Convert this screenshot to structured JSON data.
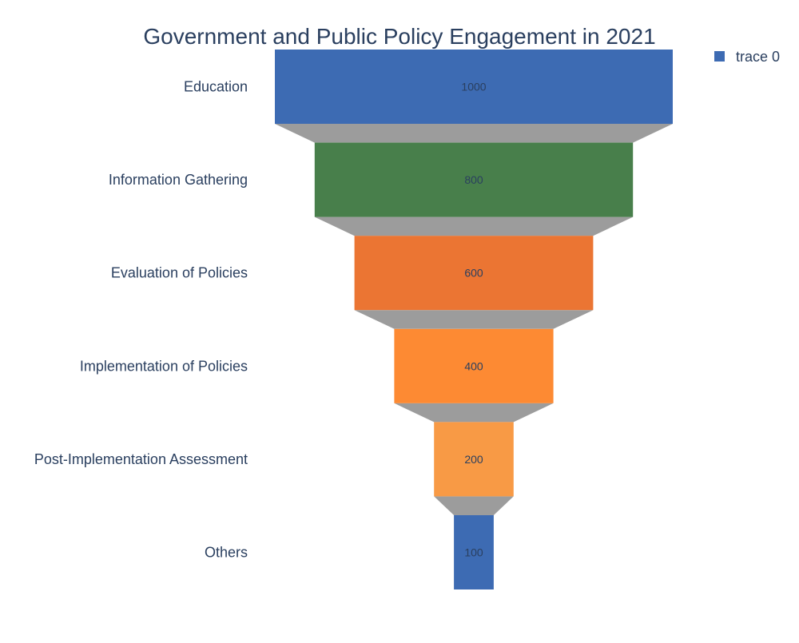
{
  "chart_data": {
    "type": "funnel",
    "title": "Government and Public Policy Engagement in 2021",
    "categories": [
      "Education",
      "Information Gathering",
      "Evaluation of Policies",
      "Implementation of Policies",
      "Post-Implementation Assessment",
      "Others"
    ],
    "series": [
      {
        "name": "trace 0",
        "values": [
          1000,
          800,
          600,
          400,
          200,
          100
        ]
      }
    ],
    "value_labels": [
      "1000",
      "800",
      "600",
      "400",
      "200",
      "100"
    ],
    "bar_colors": [
      "#3d6bb3",
      "#487f4b",
      "#eb7533",
      "#fd8a33",
      "#f89a45",
      "#3d6bb3"
    ],
    "connector_color": "#9c9c9c",
    "legend": {
      "position": "top-right",
      "entries": [
        {
          "label": "trace 0",
          "color": "#3d6bb3"
        }
      ]
    },
    "grid": false
  }
}
